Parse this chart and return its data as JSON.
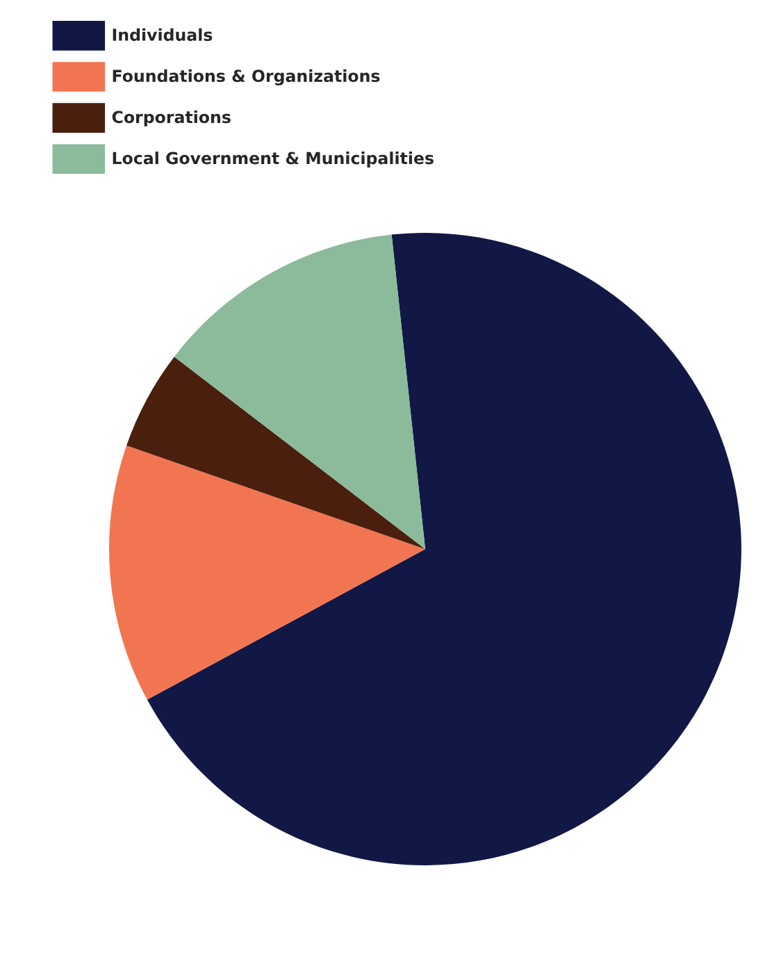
{
  "chart_data": {
    "type": "pie",
    "categories": [
      "Individuals",
      "Foundations & Organizations",
      "Corporations",
      "Local Government & Municipalities"
    ],
    "values": [
      68.8,
      13.2,
      5.1,
      12.9
    ],
    "colors": [
      "#111845",
      "#f27552",
      "#4a1f0e",
      "#8bbb9a"
    ],
    "legend": "top left"
  }
}
